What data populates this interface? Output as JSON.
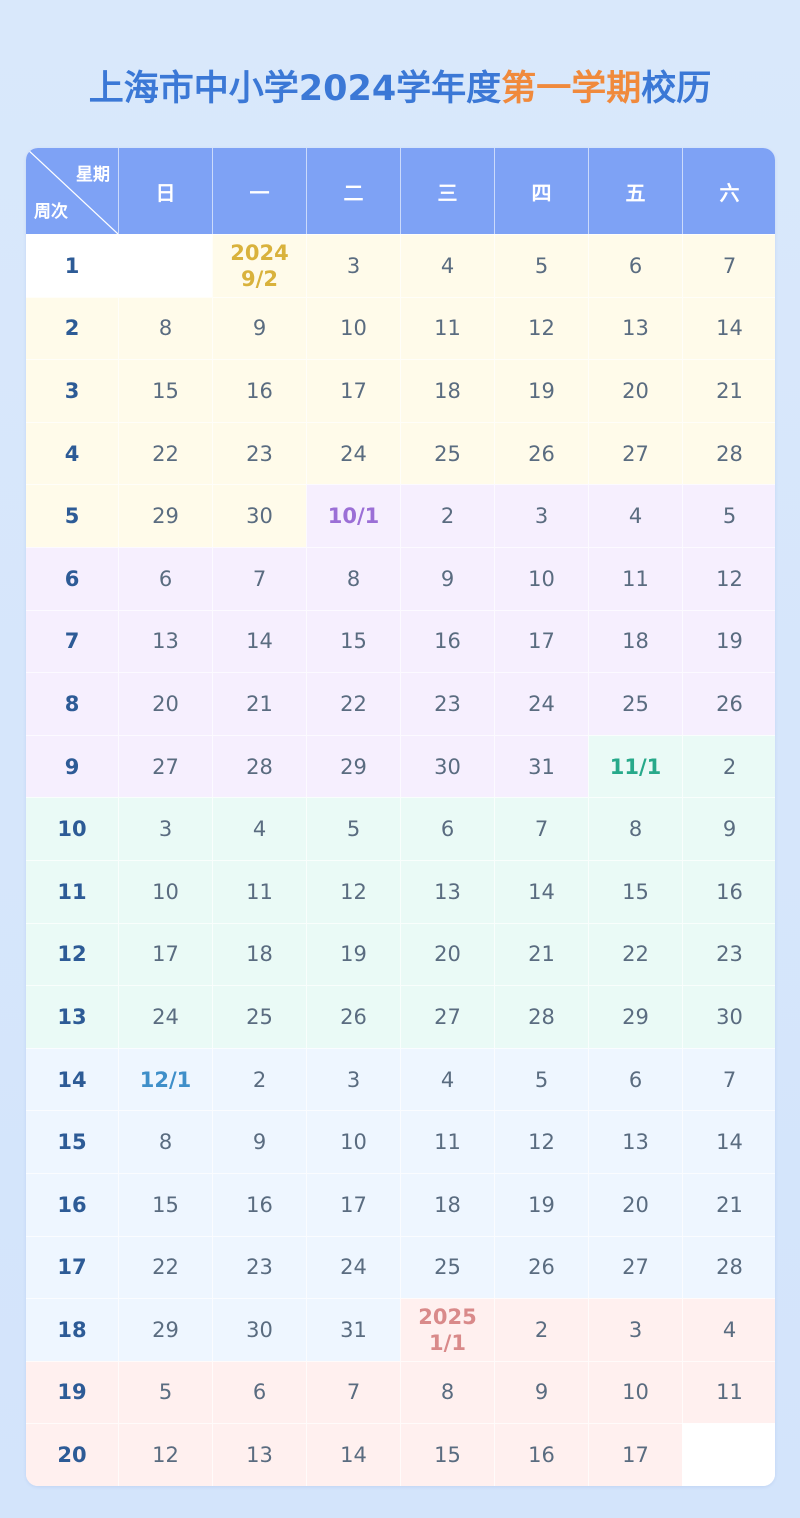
{
  "title": {
    "part1": "上海市中小学2024学年度",
    "part2": "第一学期",
    "part3": "校历"
  },
  "colors": {
    "title": "#3b78d6",
    "highlight": "#f08a3c",
    "header": "#7ea2f5",
    "months": {
      "9": "#fffbea",
      "10": "#f6effe",
      "11": "#eafaf6",
      "12": "#eef6ff",
      "1": "#fff0ef",
      "blank": "#ffffff"
    },
    "labels": {
      "9": "#d9b23c",
      "10": "#9b6fd6",
      "11": "#27a98a",
      "12": "#3f8fc9",
      "1": "#d98a8a"
    }
  },
  "header": {
    "corner_top": "星期",
    "corner_bottom": "周次",
    "days": [
      "日",
      "一",
      "二",
      "三",
      "四",
      "五",
      "六"
    ]
  },
  "weeks": [
    {
      "week": "1",
      "days": [
        "",
        "2024\n9/2",
        "3",
        "4",
        "5",
        "6",
        "7"
      ]
    },
    {
      "week": "2",
      "days": [
        "8",
        "9",
        "10",
        "11",
        "12",
        "13",
        "14"
      ]
    },
    {
      "week": "3",
      "days": [
        "15",
        "16",
        "17",
        "18",
        "19",
        "20",
        "21"
      ]
    },
    {
      "week": "4",
      "days": [
        "22",
        "23",
        "24",
        "25",
        "26",
        "27",
        "28"
      ]
    },
    {
      "week": "5",
      "days": [
        "29",
        "30",
        "10/1",
        "2",
        "3",
        "4",
        "5"
      ]
    },
    {
      "week": "6",
      "days": [
        "6",
        "7",
        "8",
        "9",
        "10",
        "11",
        "12"
      ]
    },
    {
      "week": "7",
      "days": [
        "13",
        "14",
        "15",
        "16",
        "17",
        "18",
        "19"
      ]
    },
    {
      "week": "8",
      "days": [
        "20",
        "21",
        "22",
        "23",
        "24",
        "25",
        "26"
      ]
    },
    {
      "week": "9",
      "days": [
        "27",
        "28",
        "29",
        "30",
        "31",
        "11/1",
        "2"
      ]
    },
    {
      "week": "10",
      "days": [
        "3",
        "4",
        "5",
        "6",
        "7",
        "8",
        "9"
      ]
    },
    {
      "week": "11",
      "days": [
        "10",
        "11",
        "12",
        "13",
        "14",
        "15",
        "16"
      ]
    },
    {
      "week": "12",
      "days": [
        "17",
        "18",
        "19",
        "20",
        "21",
        "22",
        "23"
      ]
    },
    {
      "week": "13",
      "days": [
        "24",
        "25",
        "26",
        "27",
        "28",
        "29",
        "30"
      ]
    },
    {
      "week": "14",
      "days": [
        "12/1",
        "2",
        "3",
        "4",
        "5",
        "6",
        "7"
      ]
    },
    {
      "week": "15",
      "days": [
        "8",
        "9",
        "10",
        "11",
        "12",
        "13",
        "14"
      ]
    },
    {
      "week": "16",
      "days": [
        "15",
        "16",
        "17",
        "18",
        "19",
        "20",
        "21"
      ]
    },
    {
      "week": "17",
      "days": [
        "22",
        "23",
        "24",
        "25",
        "26",
        "27",
        "28"
      ]
    },
    {
      "week": "18",
      "days": [
        "29",
        "30",
        "31",
        "2025\n1/1",
        "2",
        "3",
        "4"
      ]
    },
    {
      "week": "19",
      "days": [
        "5",
        "6",
        "7",
        "8",
        "9",
        "10",
        "11"
      ]
    },
    {
      "week": "20",
      "days": [
        "12",
        "13",
        "14",
        "15",
        "16",
        "17",
        ""
      ]
    }
  ]
}
